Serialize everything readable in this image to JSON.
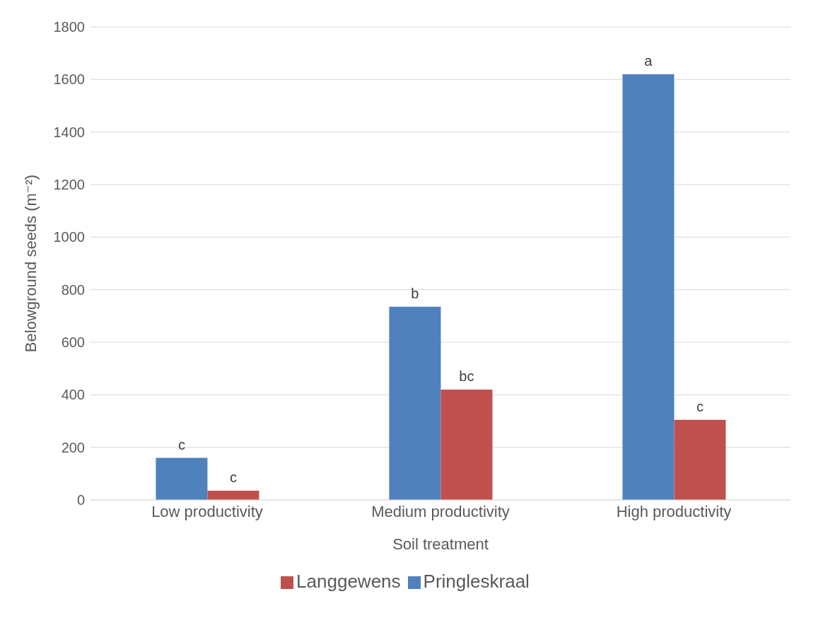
{
  "chart_data": {
    "type": "bar",
    "xlabel": "Soil treatment",
    "ylabel": "Belowground seeds (m⁻²)",
    "categories": [
      "Low productivity",
      "Medium productivity",
      "High productivity"
    ],
    "series": [
      {
        "name": "Pringleskraal",
        "color": "#4f81bd",
        "values": [
          160,
          735,
          1620
        ],
        "value_labels": [
          "c",
          "b",
          "a"
        ]
      },
      {
        "name": "Langgewens",
        "color": "#c0504d",
        "values": [
          35,
          420,
          305
        ],
        "value_labels": [
          "c",
          "bc",
          "c"
        ]
      }
    ],
    "ylim": [
      0,
      1800
    ],
    "yticks": [
      0,
      200,
      400,
      600,
      800,
      1000,
      1200,
      1400,
      1600,
      1800
    ],
    "grid": "y",
    "legend": "bottom"
  }
}
